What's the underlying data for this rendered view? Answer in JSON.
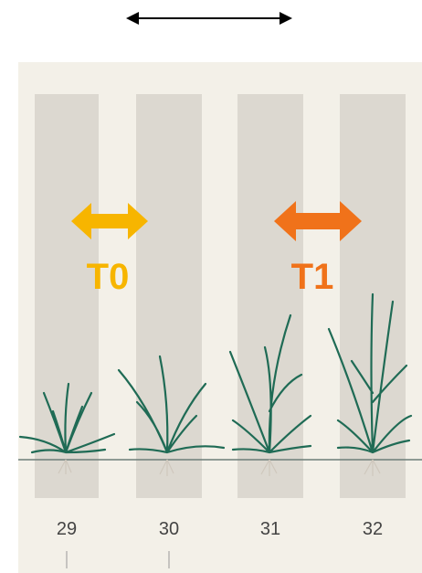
{
  "arrows": [
    {
      "label": "T0",
      "color": "#f7b500"
    },
    {
      "label": "T1",
      "color": "#f0721a"
    }
  ],
  "stages": [
    "29",
    "30",
    "31",
    "32"
  ]
}
